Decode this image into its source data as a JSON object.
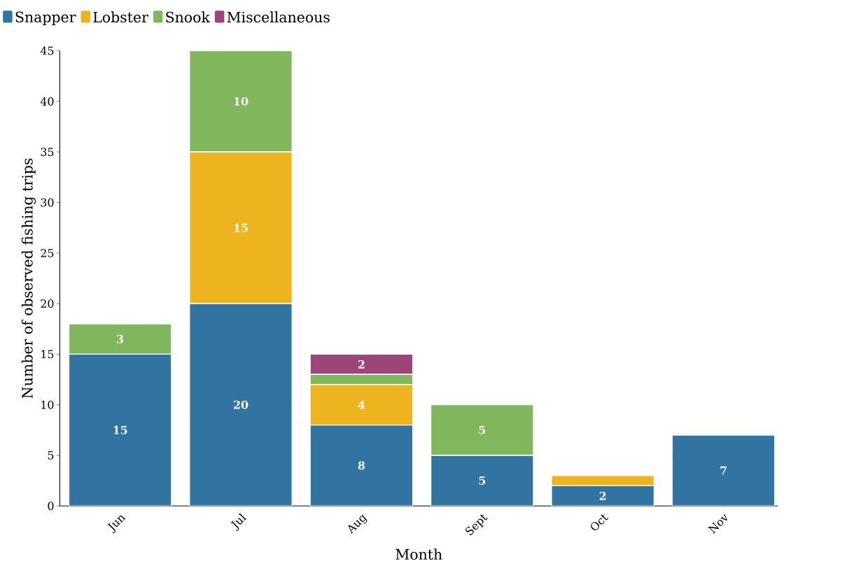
{
  "chart_data": {
    "type": "bar",
    "stacked": true,
    "xlabel": "Month",
    "ylabel": "Number of observed fishing trips",
    "categories": [
      "Jun",
      "Jul",
      "Aug",
      "Sept",
      "Oct",
      "Nov"
    ],
    "series": [
      {
        "name": "Snapper",
        "color": "#3274a1",
        "values": [
          15,
          20,
          8,
          5,
          2,
          7
        ],
        "value_labels": [
          "15",
          "20",
          "8",
          "5",
          "2",
          "7"
        ]
      },
      {
        "name": "Lobster",
        "color": "#eeb420",
        "values": [
          0,
          15,
          4,
          0,
          1,
          0
        ],
        "value_labels": [
          null,
          "15",
          "4",
          null,
          null,
          null
        ]
      },
      {
        "name": "Snook",
        "color": "#80b65c",
        "values": [
          3,
          10,
          1,
          5,
          0,
          0
        ],
        "value_labels": [
          "3",
          "10",
          null,
          "5",
          null,
          null
        ]
      },
      {
        "name": "Miscellaneous",
        "color": "#9b4677",
        "values": [
          0,
          0,
          2,
          0,
          0,
          0
        ],
        "value_labels": [
          null,
          null,
          "2",
          null,
          null,
          null
        ]
      }
    ],
    "ylim": [
      0,
      45
    ],
    "yticks": [
      0,
      5,
      10,
      15,
      20,
      25,
      30,
      35,
      40,
      45
    ],
    "grid": false,
    "legend": "top left"
  }
}
